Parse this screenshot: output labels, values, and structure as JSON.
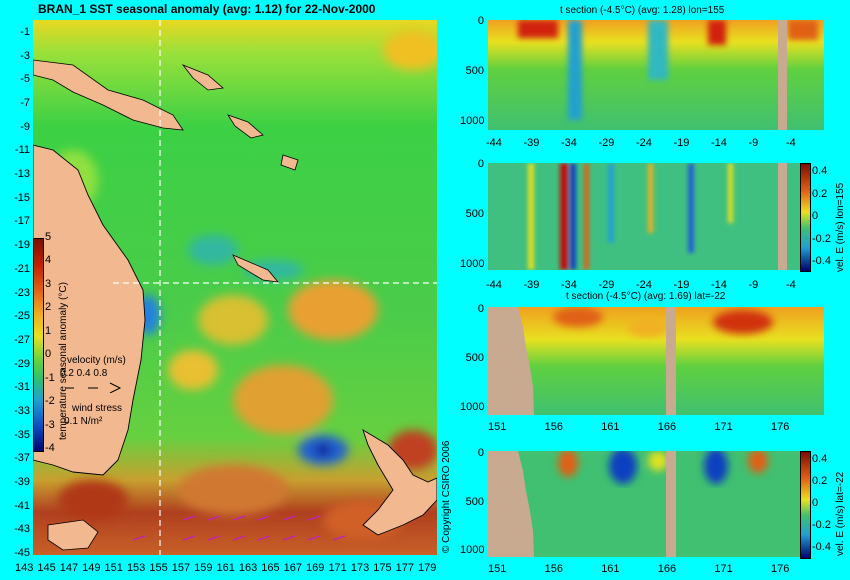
{
  "map": {
    "title": "BRAN_1 SST seasonal anomaly (avg: 1.12) for 22-Nov-2000",
    "y_ticks": [
      "-1",
      "-3",
      "-5",
      "-7",
      "-9",
      "-11",
      "-13",
      "-15",
      "-17",
      "-19",
      "-21",
      "-23",
      "-25",
      "-27",
      "-29",
      "-31",
      "-33",
      "-35",
      "-37",
      "-39",
      "-41",
      "-43",
      "-45"
    ],
    "x_ticks": [
      "143",
      "145",
      "147",
      "149",
      "151",
      "153",
      "155",
      "157",
      "159",
      "161",
      "163",
      "165",
      "167",
      "169",
      "171",
      "173",
      "175",
      "177",
      "179"
    ],
    "colorbar_label": "temperature seasonal anomaly (°C)",
    "colorbar_ticks": [
      "5",
      "4",
      "3",
      "2",
      "1",
      "0",
      "-1",
      "-2",
      "-3",
      "-4"
    ],
    "velocity_label": "velocity (m/s)",
    "velocity_scale": "0.2 0.4 0.8",
    "wind_label": "wind stress",
    "wind_scale": "0.1 N/m²",
    "section_lon": "155",
    "section_lat": "-22"
  },
  "copyright": "© Copyright CSIRO 2006",
  "panels": [
    {
      "title": "t section (-4.5°C) (avg: 1.28) lon=155",
      "x_ticks": [
        "-44",
        "-39",
        "-34",
        "-29",
        "-24",
        "-19",
        "-14",
        "-9",
        "-4"
      ],
      "y_ticks": [
        "0",
        "500",
        "1000"
      ]
    },
    {
      "title": "",
      "x_ticks": [
        "-44",
        "-39",
        "-34",
        "-29",
        "-24",
        "-19",
        "-14",
        "-9",
        "-4"
      ],
      "y_ticks": [
        "0",
        "500",
        "1000"
      ],
      "colorbar_label": "vel. E (m/s) lon=155",
      "colorbar_ticks": [
        "0.4",
        "0.2",
        "0",
        "-0.2",
        "-0.4"
      ]
    },
    {
      "title": "t section (-4.5°C) (avg: 1.69) lat=-22",
      "x_ticks": [
        "151",
        "156",
        "161",
        "166",
        "171",
        "176"
      ],
      "y_ticks": [
        "0",
        "500",
        "1000"
      ]
    },
    {
      "title": "",
      "x_ticks": [
        "151",
        "156",
        "161",
        "166",
        "171",
        "176"
      ],
      "y_ticks": [
        "0",
        "500",
        "1000"
      ],
      "colorbar_label": "vel. E (m/s) lat=-22",
      "colorbar_ticks": [
        "0.4",
        "0.2",
        "0",
        "-0.2",
        "-0.4"
      ]
    }
  ],
  "chart_data": [
    {
      "type": "heatmap",
      "title": "BRAN_1 SST seasonal anomaly (avg: 1.12) for 22-Nov-2000",
      "xlim": [
        143,
        180
      ],
      "ylim": [
        -45,
        0
      ],
      "colorbar_range": [
        -4,
        5
      ],
      "colorbar_label": "temperature seasonal anomaly (°C)"
    },
    {
      "type": "heatmap",
      "title": "t section (-4.5°C) (avg: 1.28) lon=155",
      "xlim": [
        -45,
        0
      ],
      "ylim": [
        1050,
        0
      ]
    },
    {
      "type": "heatmap",
      "title": "",
      "xlim": [
        -45,
        0
      ],
      "ylim": [
        1050,
        0
      ],
      "colorbar_range": [
        -0.4,
        0.4
      ],
      "colorbar_label": "vel. E (m/s) lon=155"
    },
    {
      "type": "heatmap",
      "title": "t section (-4.5°C) (avg: 1.69) lat=-22",
      "xlim": [
        150,
        180
      ],
      "ylim": [
        1050,
        0
      ]
    },
    {
      "type": "heatmap",
      "title": "",
      "xlim": [
        150,
        180
      ],
      "ylim": [
        1050,
        0
      ],
      "colorbar_range": [
        -0.4,
        0.4
      ],
      "colorbar_label": "vel. E (m/s) lat=-22"
    }
  ]
}
